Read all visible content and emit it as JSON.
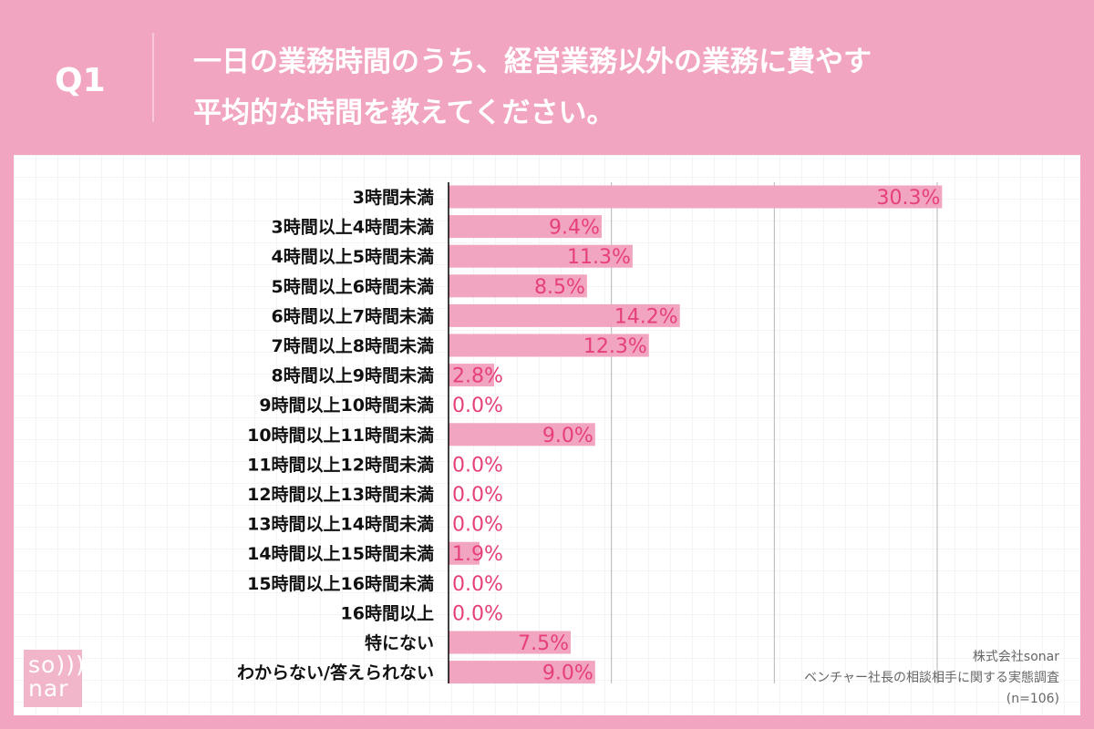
{
  "header": {
    "q_label": "Q1",
    "title_line1": "一日の業務時間のうち、経営業務以外の業務に費やす",
    "title_line2": "平均的な時間を教えてください。"
  },
  "source": {
    "company": "株式会社sonar",
    "survey": "ベンチャー社長の相談相手に関する実態調査",
    "n": "(n=106)"
  },
  "logo": {
    "text_top": "so)))",
    "text_bottom": "nar"
  },
  "colors": {
    "bar": "#f2a5c0",
    "label": "#e6407a",
    "background": "#f2a5c0"
  },
  "chart_data": {
    "type": "bar",
    "orientation": "horizontal",
    "xlim": [
      0,
      30
    ],
    "grid": true,
    "gridlines_at": [
      10,
      20,
      30
    ],
    "categories": [
      "3時間未満",
      "3時間以上4時間未満",
      "4時間以上5時間未満",
      "5時間以上6時間未満",
      "6時間以上7時間未満",
      "7時間以上8時間未満",
      "8時間以上9時間未満",
      "9時間以上10時間未満",
      "10時間以上11時間未満",
      "11時間以上12時間未満",
      "12時間以上13時間未満",
      "13時間以上14時間未満",
      "14時間以上15時間未満",
      "15時間以上16時間未満",
      "16時間以上",
      "特にない",
      "わからない/答えられない"
    ],
    "values": [
      30.3,
      9.4,
      11.3,
      8.5,
      14.2,
      12.3,
      2.8,
      0.0,
      9.0,
      0.0,
      0.0,
      0.0,
      1.9,
      0.0,
      0.0,
      7.5,
      9.0
    ],
    "labels": [
      "30.3%",
      "9.4%",
      "11.3%",
      "8.5%",
      "14.2%",
      "12.3%",
      "2.8%",
      "0.0%",
      "9.0%",
      "0.0%",
      "0.0%",
      "0.0%",
      "1.9%",
      "0.0%",
      "0.0%",
      "7.5%",
      "9.0%"
    ]
  }
}
